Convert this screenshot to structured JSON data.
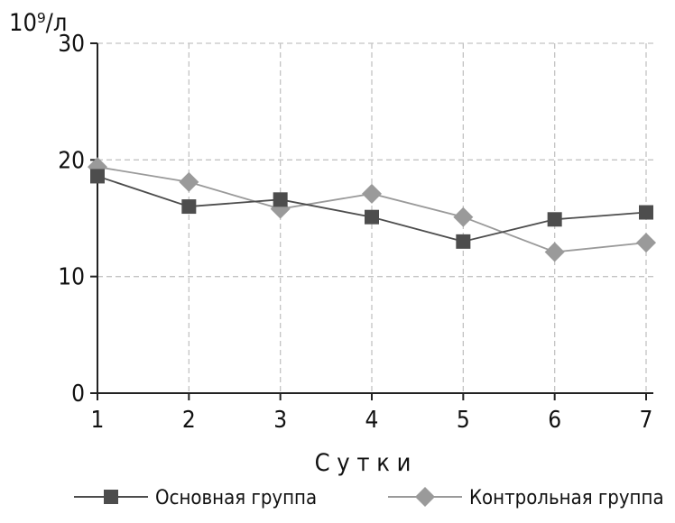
{
  "chart_data": {
    "type": "line",
    "ylabel": "10⁹/л",
    "xlabel": "С у т к и",
    "x": [
      1,
      2,
      3,
      4,
      5,
      6,
      7
    ],
    "ylim": [
      0,
      30
    ],
    "yticks": [
      0,
      10,
      20,
      30
    ],
    "grid": true,
    "legend_position": "bottom",
    "series": [
      {
        "name": "Основная группа",
        "marker": "square",
        "color": "#4d4d4d",
        "values": [
          18.6,
          16.0,
          16.6,
          15.1,
          13.0,
          14.9,
          15.5
        ]
      },
      {
        "name": "Контрольная группа",
        "marker": "diamond",
        "color": "#9a9a9a",
        "values": [
          19.4,
          18.1,
          15.8,
          17.1,
          15.1,
          12.1,
          12.9
        ]
      }
    ]
  }
}
